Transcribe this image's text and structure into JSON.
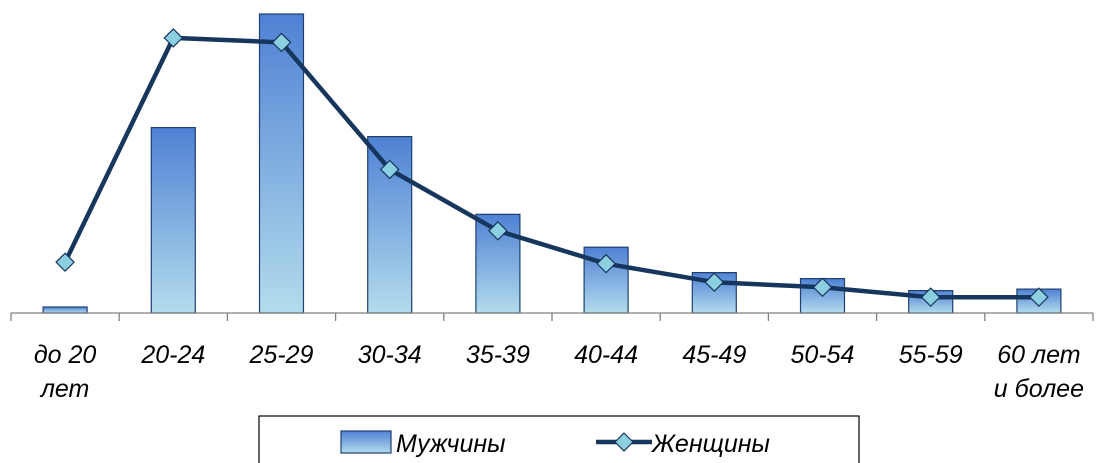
{
  "chart_data": {
    "type": "bar",
    "categories": [
      [
        "до 20",
        "лет"
      ],
      [
        "20-24"
      ],
      [
        "25-29"
      ],
      [
        "30-34"
      ],
      [
        "35-39"
      ],
      [
        "40-44"
      ],
      [
        "45-49"
      ],
      [
        "50-54"
      ],
      [
        "55-59"
      ],
      [
        "60 лет",
        "и более"
      ]
    ],
    "series": [
      {
        "name": "Мужчины",
        "type": "bar",
        "values": [
          2,
          62,
          100,
          59,
          33,
          22,
          13.5,
          11.5,
          7.5,
          8
        ],
        "color_top": "#4f81d4",
        "color_bottom": "#b3dcec",
        "border": "#1f3f6e"
      },
      {
        "name": "Женщины",
        "type": "line",
        "values": [
          17,
          92,
          90.5,
          48,
          27.5,
          16.5,
          10.3,
          8.6,
          5.3,
          5.3
        ],
        "color": "#17365d",
        "marker_fill": "#8ccfe0",
        "marker": "diamond"
      }
    ],
    "ylim": [
      0,
      100
    ],
    "grid": false,
    "legend_position": "bottom"
  }
}
